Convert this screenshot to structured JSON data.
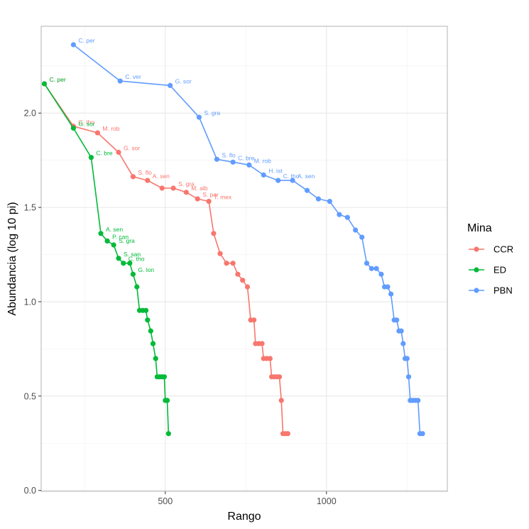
{
  "chart_data": {
    "type": "line",
    "title": "",
    "xlabel": "Rango",
    "ylabel": "Abundancia (log 10 pi)",
    "xlim": [
      115,
      1375
    ],
    "ylim": [
      -0.005,
      2.46
    ],
    "x_ticks": [
      {
        "value": 500,
        "label": "500"
      },
      {
        "value": 1000,
        "label": "1000"
      }
    ],
    "y_ticks": [
      {
        "value": 0.0,
        "label": "0.0"
      },
      {
        "value": 0.5,
        "label": "0.5"
      },
      {
        "value": 1.0,
        "label": "1.0"
      },
      {
        "value": 1.5,
        "label": "1.5"
      },
      {
        "value": 2.0,
        "label": "2.0"
      }
    ],
    "grid": true,
    "legend": {
      "title": "Mina",
      "position": "right"
    },
    "series": [
      {
        "name": "CCR",
        "color": "#F8766D",
        "points": [
          [
            125,
            2.155
          ],
          [
            215,
            1.93
          ],
          [
            290,
            1.895
          ],
          [
            355,
            1.792
          ],
          [
            400,
            1.663
          ],
          [
            445,
            1.643
          ],
          [
            490,
            1.602
          ],
          [
            525,
            1.602
          ],
          [
            565,
            1.58
          ],
          [
            600,
            1.545
          ],
          [
            635,
            1.532
          ],
          [
            650,
            1.362
          ],
          [
            670,
            1.255
          ],
          [
            690,
            1.204
          ],
          [
            710,
            1.204
          ],
          [
            725,
            1.146
          ],
          [
            740,
            1.114
          ],
          [
            755,
            1.079
          ],
          [
            765,
            0.903
          ],
          [
            775,
            0.903
          ],
          [
            780,
            0.778
          ],
          [
            790,
            0.778
          ],
          [
            800,
            0.778
          ],
          [
            805,
            0.699
          ],
          [
            815,
            0.699
          ],
          [
            825,
            0.699
          ],
          [
            830,
            0.602
          ],
          [
            838,
            0.602
          ],
          [
            846,
            0.602
          ],
          [
            854,
            0.602
          ],
          [
            860,
            0.477
          ],
          [
            865,
            0.301
          ],
          [
            872,
            0.301
          ],
          [
            880,
            0.301
          ]
        ],
        "labels": [
          {
            "text": "C. per",
            "x": 125,
            "y": 2.155
          },
          {
            "text": "C. tho",
            "x": 215,
            "y": 1.93
          },
          {
            "text": "M. rob",
            "x": 290,
            "y": 1.895
          },
          {
            "text": "G. sor",
            "x": 355,
            "y": 1.792
          },
          {
            "text": "S. flo",
            "x": 400,
            "y": 1.663
          },
          {
            "text": "A. sen",
            "x": 445,
            "y": 1.643
          },
          {
            "text": "S. gra",
            "x": 525,
            "y": 1.602
          },
          {
            "text": "M. alb",
            "x": 565,
            "y": 1.58
          },
          {
            "text": "S. par",
            "x": 600,
            "y": 1.545
          },
          {
            "text": "T. mex",
            "x": 635,
            "y": 1.532
          }
        ]
      },
      {
        "name": "ED",
        "color": "#00BA38",
        "points": [
          [
            125,
            2.155
          ],
          [
            215,
            1.92
          ],
          [
            270,
            1.765
          ],
          [
            300,
            1.362
          ],
          [
            320,
            1.322
          ],
          [
            340,
            1.301
          ],
          [
            355,
            1.23
          ],
          [
            370,
            1.204
          ],
          [
            390,
            1.204
          ],
          [
            400,
            1.146
          ],
          [
            412,
            1.079
          ],
          [
            420,
            0.954
          ],
          [
            430,
            0.954
          ],
          [
            440,
            0.954
          ],
          [
            445,
            0.903
          ],
          [
            455,
            0.845
          ],
          [
            462,
            0.778
          ],
          [
            470,
            0.699
          ],
          [
            475,
            0.602
          ],
          [
            482,
            0.602
          ],
          [
            490,
            0.602
          ],
          [
            497,
            0.602
          ],
          [
            500,
            0.477
          ],
          [
            506,
            0.477
          ],
          [
            510,
            0.301
          ]
        ],
        "labels": [
          {
            "text": "C. per",
            "x": 125,
            "y": 2.155
          },
          {
            "text": "G. sor",
            "x": 215,
            "y": 1.92
          },
          {
            "text": "C. bre",
            "x": 270,
            "y": 1.765
          },
          {
            "text": "A. sen",
            "x": 300,
            "y": 1.362
          },
          {
            "text": "P. can",
            "x": 320,
            "y": 1.322
          },
          {
            "text": "S. gra",
            "x": 340,
            "y": 1.301
          },
          {
            "text": "S. san",
            "x": 355,
            "y": 1.23
          },
          {
            "text": "C. tho",
            "x": 370,
            "y": 1.204
          },
          {
            "text": "G. lon",
            "x": 400,
            "y": 1.146
          }
        ]
      },
      {
        "name": "PBN",
        "color": "#619CFF",
        "points": [
          [
            215,
            2.362
          ],
          [
            360,
            2.17
          ],
          [
            515,
            2.146
          ],
          [
            605,
            1.978
          ],
          [
            660,
            1.755
          ],
          [
            710,
            1.74
          ],
          [
            760,
            1.725
          ],
          [
            805,
            1.672
          ],
          [
            850,
            1.643
          ],
          [
            895,
            1.643
          ],
          [
            940,
            1.59
          ],
          [
            975,
            1.545
          ],
          [
            1010,
            1.532
          ],
          [
            1040,
            1.462
          ],
          [
            1065,
            1.447
          ],
          [
            1090,
            1.38
          ],
          [
            1110,
            1.342
          ],
          [
            1125,
            1.204
          ],
          [
            1140,
            1.176
          ],
          [
            1155,
            1.176
          ],
          [
            1170,
            1.146
          ],
          [
            1180,
            1.079
          ],
          [
            1190,
            1.079
          ],
          [
            1200,
            1.041
          ],
          [
            1210,
            0.903
          ],
          [
            1218,
            0.903
          ],
          [
            1225,
            0.845
          ],
          [
            1232,
            0.845
          ],
          [
            1238,
            0.778
          ],
          [
            1244,
            0.699
          ],
          [
            1250,
            0.699
          ],
          [
            1255,
            0.602
          ],
          [
            1260,
            0.477
          ],
          [
            1268,
            0.477
          ],
          [
            1276,
            0.477
          ],
          [
            1284,
            0.477
          ],
          [
            1290,
            0.301
          ],
          [
            1298,
            0.301
          ]
        ],
        "labels": [
          {
            "text": "C. per",
            "x": 215,
            "y": 2.362
          },
          {
            "text": "C. ver",
            "x": 360,
            "y": 2.17
          },
          {
            "text": "G. sor",
            "x": 515,
            "y": 2.146
          },
          {
            "text": "S. gra",
            "x": 605,
            "y": 1.978
          },
          {
            "text": "S. flo",
            "x": 660,
            "y": 1.755
          },
          {
            "text": "C. bre",
            "x": 710,
            "y": 1.74
          },
          {
            "text": "M. rob",
            "x": 760,
            "y": 1.725
          },
          {
            "text": "H. ist",
            "x": 805,
            "y": 1.672
          },
          {
            "text": "C. tho",
            "x": 850,
            "y": 1.643
          },
          {
            "text": "A. sen",
            "x": 895,
            "y": 1.643
          }
        ]
      }
    ]
  }
}
